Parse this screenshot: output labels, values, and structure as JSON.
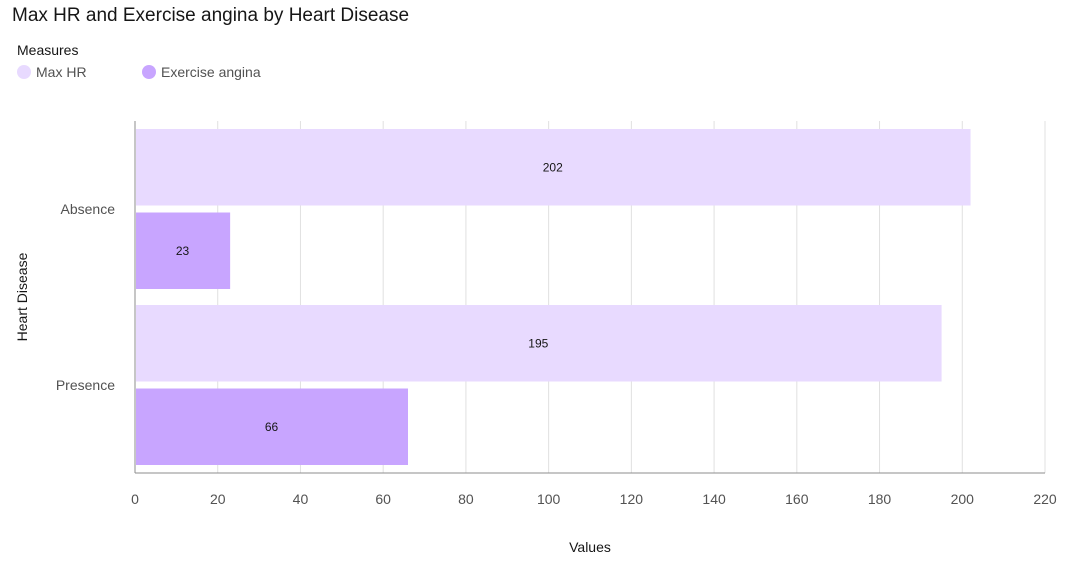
{
  "chart_data": {
    "type": "bar",
    "orientation": "horizontal",
    "title": "Max HR and Exercise angina by Heart Disease",
    "legend_title": "Measures",
    "legend_position": "top-left",
    "categories": [
      "Absence",
      "Presence"
    ],
    "series": [
      {
        "name": "Max HR",
        "values": [
          202,
          195
        ],
        "color": "#e8daff"
      },
      {
        "name": "Exercise angina",
        "values": [
          23,
          66
        ],
        "color": "#c8a5ff"
      }
    ],
    "xlabel": "Values",
    "ylabel": "Heart Disease",
    "xlim": [
      0,
      220
    ],
    "xticks": [
      0,
      20,
      40,
      60,
      80,
      100,
      120,
      140,
      160,
      180,
      200,
      220
    ],
    "grid": true
  }
}
